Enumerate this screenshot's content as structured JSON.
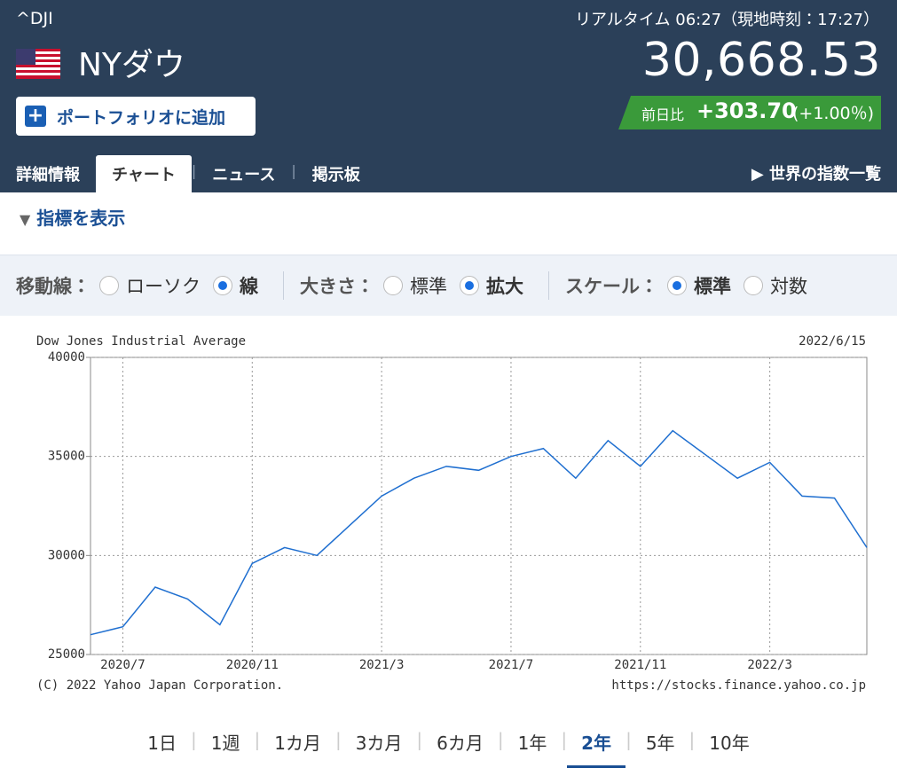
{
  "header": {
    "symbol": "^DJI",
    "name": "NYダウ",
    "realtime": "リアルタイム 06:27（現地時刻：17:27）",
    "price": "30,668.53",
    "change_label": "前日比",
    "change": "+303.70",
    "change_pct": "(+1.00％)",
    "add_button": "ポートフォリオに追加",
    "tabs": [
      "詳細情報",
      "チャート",
      "ニュース",
      "掲示板"
    ],
    "active_tab": 1,
    "world_link": "世界の指数一覧"
  },
  "indicator_toggle": "指標を表示",
  "options": [
    {
      "label": "移動線：",
      "choices": [
        "ローソク",
        "線"
      ],
      "selected": 1
    },
    {
      "label": "大きさ：",
      "choices": [
        "標準",
        "拡大"
      ],
      "selected": 1
    },
    {
      "label": "スケール：",
      "choices": [
        "標準",
        "対数"
      ],
      "selected": 0
    }
  ],
  "chart_data": {
    "type": "line",
    "title": "Dow Jones Industrial Average",
    "date": "2022/6/15",
    "x": [
      "2020/6",
      "2020/7",
      "2020/8",
      "2020/9",
      "2020/10",
      "2020/11",
      "2020/12",
      "2021/1",
      "2021/2",
      "2021/3",
      "2021/4",
      "2021/5",
      "2021/6",
      "2021/7",
      "2021/8",
      "2021/9",
      "2021/10",
      "2021/11",
      "2021/12",
      "2022/1",
      "2022/2",
      "2022/3",
      "2022/4",
      "2022/5",
      "2022/6"
    ],
    "values": [
      26000,
      26400,
      28400,
      27800,
      26500,
      29600,
      30400,
      30000,
      31500,
      33000,
      33900,
      34500,
      34300,
      35000,
      35400,
      33900,
      35800,
      34500,
      36300,
      35100,
      33900,
      34700,
      33000,
      32900,
      30400
    ],
    "color": "#1f6fd0",
    "ylim": [
      25000,
      40000
    ],
    "yticks": [
      25000,
      30000,
      35000,
      40000
    ],
    "xticks": [
      "2020/7",
      "2020/11",
      "2021/3",
      "2021/7",
      "2021/11",
      "2022/3"
    ],
    "grid": true,
    "copyright": "(C) 2022 Yahoo Japan Corporation.",
    "source": "https://stocks.finance.yahoo.co.jp"
  },
  "periods": [
    "1日",
    "1週",
    "1カ月",
    "3カ月",
    "6カ月",
    "1年",
    "2年",
    "5年",
    "10年"
  ],
  "active_period": 6
}
